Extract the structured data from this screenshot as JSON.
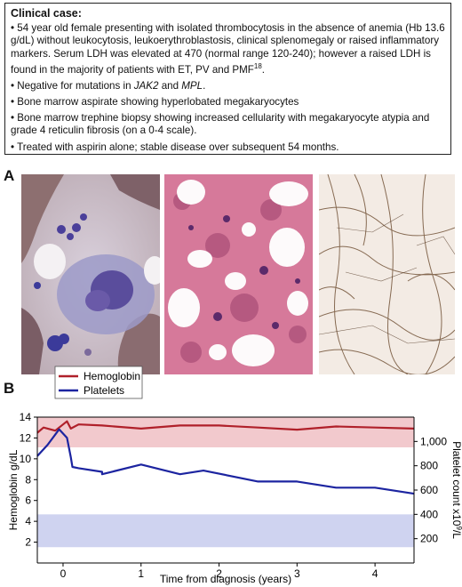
{
  "case": {
    "title": "Clinical case:",
    "bullet1": {
      "a": "• 54 year old female presenting with isolated thrombocytosis in the absence of anemia (Hb 13.6 g/dL) without leukocytosis, leukoerythroblastosis, clinical splenomegaly or raised inflammatory markers. Serum LDH was elevated at 470 (normal range 120-240); however a raised LDH is found in the majority of patients with ET, PV and PMF",
      "sup": "18",
      "b": "."
    },
    "bullet2": {
      "a": "• Negative for mutations in ",
      "jak": "JAK2",
      "mid": " and ",
      "mpl": "MPL",
      "end": "."
    },
    "bullet3": "• Bone marrow aspirate showing hyperlobated megakaryocytes",
    "bullet4": "• Bone marrow trephine biopsy showing increased cellularity with megakaryocyte atypia and grade 4 reticulin fibrosis (on a 0-4 scale).",
    "bullet5": "• Treated with aspirin alone; stable disease over subsequent 54 months."
  },
  "panel_a_label": "A",
  "panel_b_label": "B",
  "colors": {
    "hemoglobin": "#b0202a",
    "platelets": "#1c24a0",
    "hb_band": "#f2c9cd",
    "plt_band": "#cfd3f0"
  },
  "chart_data": {
    "type": "line",
    "xlabel": "Time from diagnosis (years)",
    "ylabel_left": "Hemoglobin g/dL",
    "ylabel_right": "Platelet count x10^9/L",
    "xlim": [
      -0.33,
      4.5
    ],
    "ylim_left": [
      0,
      14
    ],
    "ylim_right": [
      0,
      1200
    ],
    "x_ticks": [
      0,
      1,
      2,
      3,
      4
    ],
    "x_tick_labels": [
      "0",
      "1",
      "2",
      "3",
      "4"
    ],
    "left_ticks": [
      2,
      4,
      6,
      8,
      10,
      12,
      14
    ],
    "left_tick_labels": [
      "2",
      "4",
      "6",
      "8",
      "10",
      "12",
      "14"
    ],
    "right_ticks": [
      200,
      400,
      600,
      800,
      1000
    ],
    "right_tick_labels": [
      "200",
      "400",
      "600",
      "800",
      "1,000"
    ],
    "hemoglobin_band_left": [
      11.1,
      14.0
    ],
    "platelet_band_right": [
      130,
      400
    ],
    "legend": [
      "Hemoglobin",
      "Platelets"
    ],
    "series": [
      {
        "name": "Hemoglobin",
        "axis": "left",
        "x": [
          -0.33,
          -0.25,
          -0.1,
          -0.05,
          0.05,
          0.1,
          0.2,
          0.5,
          1.0,
          1.5,
          2.0,
          2.5,
          3.0,
          3.5,
          4.0,
          4.5
        ],
        "y": [
          12.5,
          13.0,
          12.7,
          13.0,
          13.6,
          12.9,
          13.3,
          13.2,
          12.9,
          13.2,
          13.2,
          13.0,
          12.8,
          13.1,
          13.0,
          12.9
        ]
      },
      {
        "name": "Platelets",
        "axis": "right",
        "x": [
          -0.33,
          -0.2,
          -0.05,
          0.05,
          0.1,
          0.12,
          0.2,
          0.5,
          0.5,
          1.0,
          1.5,
          1.8,
          2.5,
          3.0,
          3.5,
          4.0,
          4.5
        ],
        "y": [
          880,
          970,
          1100,
          1030,
          870,
          790,
          780,
          750,
          730,
          810,
          730,
          760,
          670,
          670,
          620,
          620,
          570
        ]
      }
    ]
  }
}
